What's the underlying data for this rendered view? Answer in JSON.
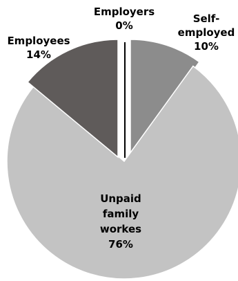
{
  "chart_data": {
    "type": "pie",
    "title": "",
    "exploded": true,
    "slices": [
      {
        "name": "Employers",
        "value": 0,
        "label_lines": [
          "Employers",
          "0%"
        ],
        "color": "#ffffff",
        "text_color": "#000000"
      },
      {
        "name": "Self-employed",
        "value": 10,
        "label_lines": [
          "Self-",
          "employed",
          "10%"
        ],
        "color": "#8c8c8c",
        "text_color": "#000000"
      },
      {
        "name": "Unpaid family workes",
        "value": 76,
        "label_lines": [
          "Unpaid",
          "family",
          "workes",
          "76%"
        ],
        "color": "#c3c3c3",
        "text_color": "#000000"
      },
      {
        "name": "Employees",
        "value": 14,
        "label_lines": [
          "Employees",
          "14%"
        ],
        "color": "#5f5b5a",
        "text_color": "#000000"
      }
    ]
  }
}
